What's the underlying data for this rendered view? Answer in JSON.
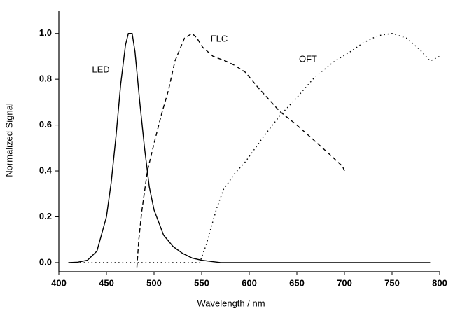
{
  "chart_data": {
    "type": "line",
    "xlabel": "Wavelength / nm",
    "ylabel": "Normalized Signal",
    "xlim": [
      400,
      800
    ],
    "ylim": [
      -0.04,
      1.1
    ],
    "xticks": [
      400,
      450,
      500,
      550,
      600,
      650,
      700,
      750,
      800
    ],
    "yticks": [
      {
        "value": 0,
        "label": "0.0"
      },
      0.2,
      0.4,
      0.6,
      0.8,
      {
        "value": 1,
        "label": "1.0"
      }
    ],
    "grid": false,
    "series": [
      {
        "name": "LED",
        "color": "#000000",
        "dash": "solid",
        "x": [
          410,
          420,
          430,
          440,
          450,
          455,
          460,
          465,
          470,
          473,
          477,
          480,
          485,
          490,
          495,
          500,
          510,
          520,
          530,
          540,
          550,
          560,
          570,
          600,
          650,
          700,
          750,
          790
        ],
        "values": [
          0,
          0.002,
          0.01,
          0.05,
          0.2,
          0.35,
          0.55,
          0.78,
          0.95,
          1.0,
          1.0,
          0.92,
          0.7,
          0.5,
          0.33,
          0.23,
          0.12,
          0.07,
          0.04,
          0.02,
          0.01,
          0.005,
          0,
          0,
          0,
          0,
          0,
          0
        ]
      },
      {
        "name": "FLC",
        "color": "#000000",
        "dash": "dashed",
        "x": [
          482,
          484,
          487,
          493,
          500,
          508,
          515,
          522,
          532,
          540,
          545,
          551,
          562,
          575,
          585,
          596,
          610,
          632,
          650,
          669,
          685,
          698,
          700
        ],
        "values": [
          -0.02,
          0.1,
          0.22,
          0.4,
          0.52,
          0.65,
          0.75,
          0.88,
          0.98,
          1.0,
          0.98,
          0.94,
          0.9,
          0.88,
          0.86,
          0.83,
          0.76,
          0.66,
          0.6,
          0.53,
          0.47,
          0.42,
          0.4
        ]
      },
      {
        "name": "OFT",
        "color": "#000000",
        "dash": "dotted",
        "x": [
          410,
          450,
          500,
          548,
          555,
          559,
          566,
          573,
          585,
          596,
          615,
          632,
          650,
          669,
          690,
          706,
          720,
          735,
          750,
          765,
          779,
          790,
          800
        ],
        "values": [
          0,
          0,
          0,
          0,
          0.08,
          0.14,
          0.24,
          0.32,
          0.39,
          0.44,
          0.55,
          0.64,
          0.72,
          0.81,
          0.88,
          0.92,
          0.96,
          0.99,
          1.0,
          0.98,
          0.93,
          0.88,
          0.9
        ]
      }
    ]
  }
}
